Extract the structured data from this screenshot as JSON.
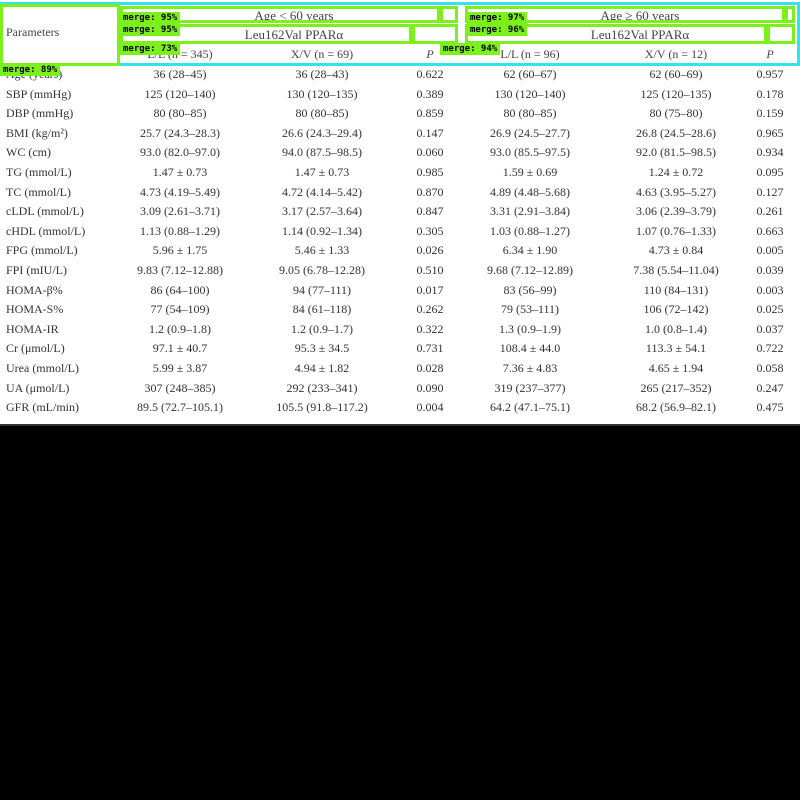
{
  "table": {
    "header": {
      "parameters_label": "Parameters",
      "group1": "Age < 60 years",
      "group2": "Age ≥ 60 years",
      "gene1": "Leu162Val PPARα",
      "gene2": "Leu162Val PPARα",
      "sub": [
        "L/L (n = 345)",
        "X/V (n = 69)",
        "P",
        "L/L (n = 96)",
        "X/V (n = 12)",
        "P"
      ]
    },
    "rows": [
      [
        "Age (years)",
        "36 (28–45)",
        "36 (28–43)",
        "0.622",
        "62 (60–67)",
        "62 (60–69)",
        "0.957"
      ],
      [
        "SBP (mmHg)",
        "125 (120–140)",
        "130 (120–135)",
        "0.389",
        "130 (120–140)",
        "125 (120–135)",
        "0.178"
      ],
      [
        "DBP (mmHg)",
        "80 (80–85)",
        "80 (80–85)",
        "0.859",
        "80 (80–85)",
        "80 (75–80)",
        "0.159"
      ],
      [
        "BMI (kg/m²)",
        "25.7 (24.3–28.3)",
        "26.6 (24.3–29.4)",
        "0.147",
        "26.9 (24.5–27.7)",
        "26.8 (24.5–28.6)",
        "0.965"
      ],
      [
        "WC (cm)",
        "93.0 (82.0–97.0)",
        "94.0 (87.5–98.5)",
        "0.060",
        "93.0 (85.5–97.5)",
        "92.0 (81.5–98.5)",
        "0.934"
      ],
      [
        "TG (mmol/L)",
        "1.47 ± 0.73",
        "1.47 ± 0.73",
        "0.985",
        "1.59 ± 0.69",
        "1.24 ± 0.72",
        "0.095"
      ],
      [
        "TC (mmol/L)",
        "4.73 (4.19–5.49)",
        "4.72 (4.14–5.42)",
        "0.870",
        "4.89 (4.48–5.68)",
        "4.63 (3.95–5.27)",
        "0.127"
      ],
      [
        "cLDL (mmol/L)",
        "3.09 (2.61–3.71)",
        "3.17 (2.57–3.64)",
        "0.847",
        "3.31 (2.91–3.84)",
        "3.06 (2.39–3.79)",
        "0.261"
      ],
      [
        "cHDL (mmol/L)",
        "1.13 (0.88–1.29)",
        "1.14 (0.92–1.34)",
        "0.305",
        "1.03 (0.88–1.27)",
        "1.07 (0.76–1.33)",
        "0.663"
      ],
      [
        "FPG (mmol/L)",
        "5.96 ± 1.75",
        "5.46 ± 1.33",
        "0.026",
        "6.34 ± 1.90",
        "4.73 ± 0.84",
        "0.005"
      ],
      [
        "FPI (mIU/L)",
        "9.83 (7.12–12.88)",
        "9.05 (6.78–12.28)",
        "0.510",
        "9.68 (7.12–12.89)",
        "7.38 (5.54–11.04)",
        "0.039"
      ],
      [
        "HOMA-β%",
        "86 (64–100)",
        "94 (77–111)",
        "0.017",
        "83 (56–99)",
        "110 (84–131)",
        "0.003"
      ],
      [
        "HOMA-S%",
        "77 (54–109)",
        "84 (61–118)",
        "0.262",
        "79 (53–111)",
        "106 (72–142)",
        "0.025"
      ],
      [
        "HOMA-IR",
        "1.2 (0.9–1.8)",
        "1.2 (0.9–1.7)",
        "0.322",
        "1.3 (0.9–1.9)",
        "1.0 (0.8–1.4)",
        "0.037"
      ],
      [
        "Cr (μmol/L)",
        "97.1 ± 40.7",
        "95.3 ± 34.5",
        "0.731",
        "108.4 ± 44.0",
        "113.3 ± 54.1",
        "0.722"
      ],
      [
        "Urea (mmol/L)",
        "5.99 ± 3.87",
        "4.94 ± 1.82",
        "0.028",
        "7.36 ± 4.83",
        "4.65 ± 1.94",
        "0.058"
      ],
      [
        "UA (μmol/L)",
        "307 (248–385)",
        "292 (233–341)",
        "0.090",
        "319 (237–377)",
        "265 (217–352)",
        "0.247"
      ],
      [
        "GFR (mL/min)",
        "89.5 (72.7–105.1)",
        "105.5 (91.8–117.2)",
        "0.004",
        "64.2 (47.1–75.1)",
        "68.2 (56.9–82.1)",
        "0.475"
      ]
    ]
  },
  "overlays": [
    {
      "label": "merge: 95%"
    },
    {
      "label": "merge: 95%"
    },
    {
      "label": "merge: 73%"
    },
    {
      "label": "merge: 89%"
    },
    {
      "label": "merge: 97%"
    },
    {
      "label": "merge: 96%"
    },
    {
      "label": "merge: 94%"
    }
  ]
}
